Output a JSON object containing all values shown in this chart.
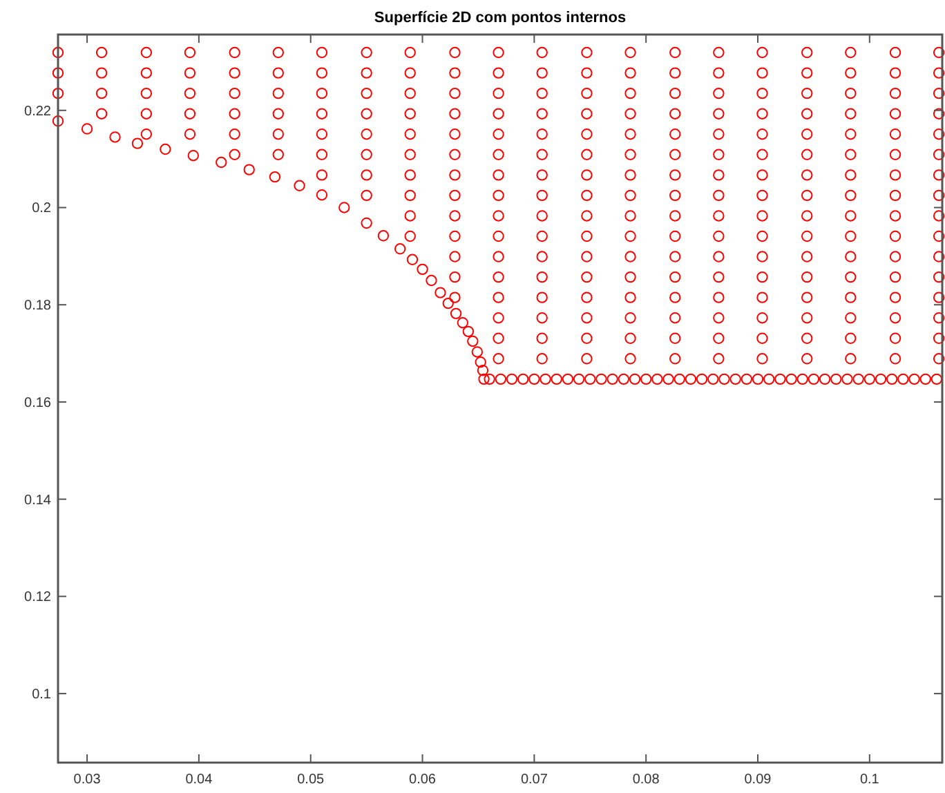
{
  "chart_data": {
    "type": "scatter",
    "title": "Superfície 2D com pontos internos",
    "xlim": [
      0.0274,
      0.1065
    ],
    "ylim": [
      0.0858,
      0.2356
    ],
    "xticks": [
      0.03,
      0.04,
      0.05,
      0.06,
      0.07,
      0.08,
      0.09,
      0.1
    ],
    "yticks": [
      0.1,
      0.12,
      0.14,
      0.16,
      0.18,
      0.2,
      0.22
    ],
    "grid": false,
    "marker": "circle",
    "series": [
      {
        "color": "#ff0000",
        "x": [
          0.0274,
          0.03,
          0.0325,
          0.0345,
          0.037,
          0.0395,
          0.042,
          0.0445,
          0.0468,
          0.049,
          0.051,
          0.053,
          0.055,
          0.0565,
          0.058,
          0.0591,
          0.06,
          0.0608,
          0.0616,
          0.0623,
          0.063,
          0.0636,
          0.0641,
          0.0645,
          0.0649,
          0.0652,
          0.0654,
          0.0655
        ],
        "values": [
          0.2178,
          0.2162,
          0.2145,
          0.2132,
          0.212,
          0.2107,
          0.2093,
          0.2078,
          0.2063,
          0.2045,
          0.2026,
          0.2,
          0.1968,
          0.1942,
          0.1915,
          0.1893,
          0.1873,
          0.185,
          0.1825,
          0.1803,
          0.1782,
          0.1763,
          0.1745,
          0.1725,
          0.1703,
          0.1682,
          0.1665,
          0.1647
        ]
      },
      {
        "color": "#ff0000",
        "x": [
          0.066,
          0.067,
          0.068,
          0.069,
          0.07,
          0.071,
          0.072,
          0.073,
          0.074,
          0.075,
          0.076,
          0.077,
          0.078,
          0.079,
          0.08,
          0.081,
          0.082,
          0.083,
          0.084,
          0.085,
          0.086,
          0.087,
          0.088,
          0.089,
          0.09,
          0.091,
          0.092,
          0.093,
          0.094,
          0.095,
          0.096,
          0.097,
          0.098,
          0.099,
          0.1,
          0.101,
          0.102,
          0.103,
          0.104,
          0.105,
          0.106
        ],
        "values": [
          0.1647,
          0.1647,
          0.1647,
          0.1647,
          0.1647,
          0.1647,
          0.1647,
          0.1647,
          0.1647,
          0.1647,
          0.1647,
          0.1647,
          0.1647,
          0.1647,
          0.1647,
          0.1647,
          0.1647,
          0.1647,
          0.1647,
          0.1647,
          0.1647,
          0.1647,
          0.1647,
          0.1647,
          0.1647,
          0.1647,
          0.1647,
          0.1647,
          0.1647,
          0.1647,
          0.1647,
          0.1647,
          0.1647,
          0.1647,
          0.1647,
          0.1647,
          0.1647,
          0.1647,
          0.1647,
          0.1647,
          0.1647
        ]
      },
      {
        "color": "#ff0000",
        "x": [
          0.0274,
          0.0274,
          0.0274,
          0.0313,
          0.0313,
          0.0313,
          0.0313,
          0.0353,
          0.0353,
          0.0353,
          0.0353,
          0.0353,
          0.0392,
          0.0392,
          0.0392,
          0.0392,
          0.0392,
          0.0432,
          0.0432,
          0.0432,
          0.0432,
          0.0432,
          0.0432,
          0.0471,
          0.0471,
          0.0471,
          0.0471,
          0.0471,
          0.0471,
          0.051,
          0.051,
          0.051,
          0.051,
          0.051,
          0.051,
          0.051,
          0.055,
          0.055,
          0.055,
          0.055,
          0.055,
          0.055,
          0.055,
          0.055,
          0.0589,
          0.0589,
          0.0589,
          0.0589,
          0.0589,
          0.0589,
          0.0589,
          0.0589,
          0.0589,
          0.0589,
          0.0629,
          0.0629,
          0.0629,
          0.0629,
          0.0629,
          0.0629,
          0.0629,
          0.0629,
          0.0629,
          0.0629,
          0.0629,
          0.0629,
          0.0629,
          0.0668,
          0.0668,
          0.0668,
          0.0668,
          0.0668,
          0.0668,
          0.0668,
          0.0668,
          0.0668,
          0.0668,
          0.0668,
          0.0668,
          0.0668,
          0.0668,
          0.0668,
          0.0668,
          0.0707,
          0.0707,
          0.0707,
          0.0707,
          0.0707,
          0.0707,
          0.0707,
          0.0707,
          0.0707,
          0.0707,
          0.0707,
          0.0707,
          0.0707,
          0.0707,
          0.0707,
          0.0707,
          0.0747,
          0.0747,
          0.0747,
          0.0747,
          0.0747,
          0.0747,
          0.0747,
          0.0747,
          0.0747,
          0.0747,
          0.0747,
          0.0747,
          0.0747,
          0.0747,
          0.0747,
          0.0747,
          0.0786,
          0.0786,
          0.0786,
          0.0786,
          0.0786,
          0.0786,
          0.0786,
          0.0786,
          0.0786,
          0.0786,
          0.0786,
          0.0786,
          0.0786,
          0.0786,
          0.0786,
          0.0786,
          0.0826,
          0.0826,
          0.0826,
          0.0826,
          0.0826,
          0.0826,
          0.0826,
          0.0826,
          0.0826,
          0.0826,
          0.0826,
          0.0826,
          0.0826,
          0.0826,
          0.0826,
          0.0826,
          0.0865,
          0.0865,
          0.0865,
          0.0865,
          0.0865,
          0.0865,
          0.0865,
          0.0865,
          0.0865,
          0.0865,
          0.0865,
          0.0865,
          0.0865,
          0.0865,
          0.0865,
          0.0865,
          0.0904,
          0.0904,
          0.0904,
          0.0904,
          0.0904,
          0.0904,
          0.0904,
          0.0904,
          0.0904,
          0.0904,
          0.0904,
          0.0904,
          0.0904,
          0.0904,
          0.0904,
          0.0904,
          0.0944,
          0.0944,
          0.0944,
          0.0944,
          0.0944,
          0.0944,
          0.0944,
          0.0944,
          0.0944,
          0.0944,
          0.0944,
          0.0944,
          0.0944,
          0.0944,
          0.0944,
          0.0944,
          0.0983,
          0.0983,
          0.0983,
          0.0983,
          0.0983,
          0.0983,
          0.0983,
          0.0983,
          0.0983,
          0.0983,
          0.0983,
          0.0983,
          0.0983,
          0.0983,
          0.0983,
          0.0983,
          0.1023,
          0.1023,
          0.1023,
          0.1023,
          0.1023,
          0.1023,
          0.1023,
          0.1023,
          0.1023,
          0.1023,
          0.1023,
          0.1023,
          0.1023,
          0.1023,
          0.1023,
          0.1023,
          0.1062,
          0.1062,
          0.1062,
          0.1062,
          0.1062,
          0.1062,
          0.1062,
          0.1062,
          0.1062,
          0.1062,
          0.1062,
          0.1062,
          0.1062,
          0.1062,
          0.1062,
          0.1062
        ],
        "values": [
          0.2235,
          0.2277,
          0.2319,
          0.2193,
          0.2235,
          0.2277,
          0.2319,
          0.2151,
          0.2193,
          0.2235,
          0.2277,
          0.2319,
          0.2151,
          0.2193,
          0.2235,
          0.2277,
          0.2319,
          0.2109,
          0.2151,
          0.2193,
          0.2235,
          0.2277,
          0.2319,
          0.2109,
          0.2151,
          0.2193,
          0.2235,
          0.2277,
          0.2319,
          0.2067,
          0.2109,
          0.2151,
          0.2193,
          0.2235,
          0.2277,
          0.2319,
          0.2025,
          0.2067,
          0.2109,
          0.2151,
          0.2193,
          0.2235,
          0.2277,
          0.2319,
          0.1941,
          0.1983,
          0.2025,
          0.2067,
          0.2109,
          0.2151,
          0.2193,
          0.2235,
          0.2277,
          0.2319,
          0.1815,
          0.1857,
          0.1899,
          0.1941,
          0.1983,
          0.2025,
          0.2067,
          0.2109,
          0.2151,
          0.2193,
          0.2235,
          0.2277,
          0.2319,
          0.1689,
          0.1731,
          0.1773,
          0.1815,
          0.1857,
          0.1899,
          0.1941,
          0.1983,
          0.2025,
          0.2067,
          0.2109,
          0.2151,
          0.2193,
          0.2235,
          0.2277,
          0.2319,
          0.1689,
          0.1731,
          0.1773,
          0.1815,
          0.1857,
          0.1899,
          0.1941,
          0.1983,
          0.2025,
          0.2067,
          0.2109,
          0.2151,
          0.2193,
          0.2235,
          0.2277,
          0.2319,
          0.1689,
          0.1731,
          0.1773,
          0.1815,
          0.1857,
          0.1899,
          0.1941,
          0.1983,
          0.2025,
          0.2067,
          0.2109,
          0.2151,
          0.2193,
          0.2235,
          0.2277,
          0.2319,
          0.1689,
          0.1731,
          0.1773,
          0.1815,
          0.1857,
          0.1899,
          0.1941,
          0.1983,
          0.2025,
          0.2067,
          0.2109,
          0.2151,
          0.2193,
          0.2235,
          0.2277,
          0.2319,
          0.1689,
          0.1731,
          0.1773,
          0.1815,
          0.1857,
          0.1899,
          0.1941,
          0.1983,
          0.2025,
          0.2067,
          0.2109,
          0.2151,
          0.2193,
          0.2235,
          0.2277,
          0.2319,
          0.1689,
          0.1731,
          0.1773,
          0.1815,
          0.1857,
          0.1899,
          0.1941,
          0.1983,
          0.2025,
          0.2067,
          0.2109,
          0.2151,
          0.2193,
          0.2235,
          0.2277,
          0.2319,
          0.1689,
          0.1731,
          0.1773,
          0.1815,
          0.1857,
          0.1899,
          0.1941,
          0.1983,
          0.2025,
          0.2067,
          0.2109,
          0.2151,
          0.2193,
          0.2235,
          0.2277,
          0.2319,
          0.1689,
          0.1731,
          0.1773,
          0.1815,
          0.1857,
          0.1899,
          0.1941,
          0.1983,
          0.2025,
          0.2067,
          0.2109,
          0.2151,
          0.2193,
          0.2235,
          0.2277,
          0.2319,
          0.1689,
          0.1731,
          0.1773,
          0.1815,
          0.1857,
          0.1899,
          0.1941,
          0.1983,
          0.2025,
          0.2067,
          0.2109,
          0.2151,
          0.2193,
          0.2235,
          0.2277,
          0.2319,
          0.1689,
          0.1731,
          0.1773,
          0.1815,
          0.1857,
          0.1899,
          0.1941,
          0.1983,
          0.2025,
          0.2067,
          0.2109,
          0.2151,
          0.2193,
          0.2235,
          0.2277,
          0.2319,
          0.1689,
          0.1731,
          0.1773,
          0.1815,
          0.1857,
          0.1899,
          0.1941,
          0.1983,
          0.2025,
          0.2067,
          0.2109,
          0.2151,
          0.2193,
          0.2235,
          0.2277,
          0.2319
        ]
      }
    ]
  }
}
